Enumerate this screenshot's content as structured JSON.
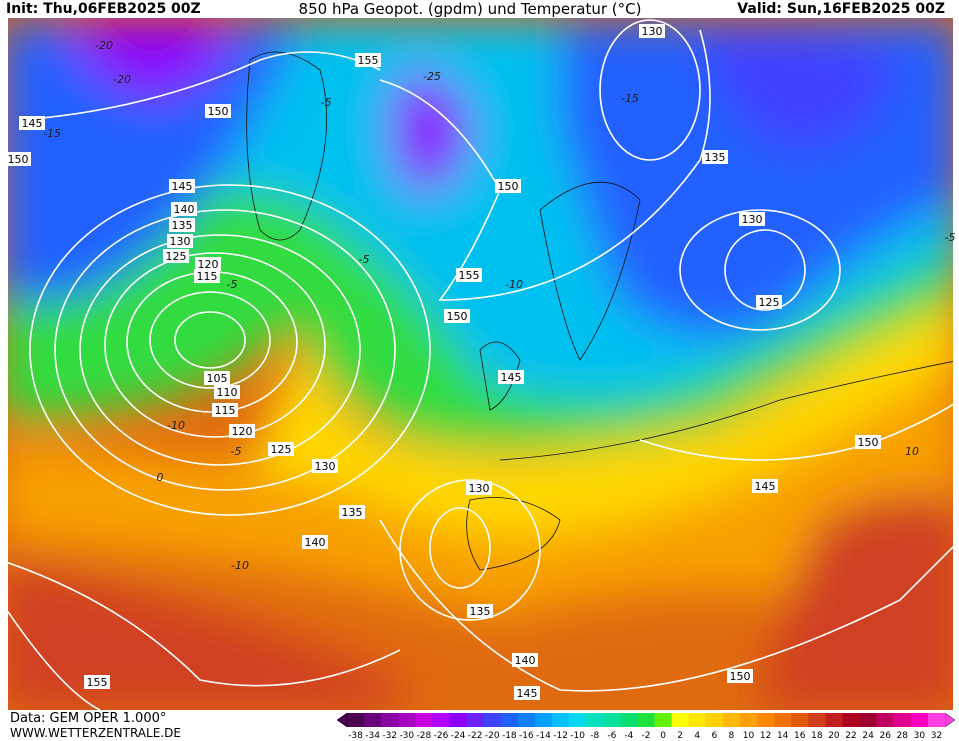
{
  "header": {
    "init": "Init: Thu,06FEB2025 00Z",
    "title": "850 hPa Geopot. (gpdm) und Temperatur (°C)",
    "valid": "Valid: Sun,16FEB2025 00Z"
  },
  "footer": {
    "data": "Data: GEM OPER 1.000°",
    "site": "WWW.WETTERZENTRALE.DE"
  },
  "geopotential_labels": [
    130,
    155,
    150,
    145,
    150,
    145,
    140,
    135,
    130,
    125,
    120,
    115,
    150,
    155,
    150,
    135,
    130,
    125,
    145,
    105,
    110,
    115,
    120,
    125,
    130,
    150,
    145,
    130,
    135,
    140,
    135,
    140,
    145,
    150,
    155
  ],
  "temperature_labels": [
    -20,
    -20,
    -15,
    -5,
    -25,
    -15,
    -5,
    -10,
    -5,
    -10,
    -5,
    0,
    -10,
    10,
    -5
  ],
  "colorbar": {
    "labels": [
      -38,
      -34,
      -32,
      -30,
      -28,
      -26,
      -24,
      -22,
      -20,
      -18,
      -16,
      -14,
      -12,
      -10,
      -8,
      -6,
      -4,
      -2,
      0,
      2,
      4,
      6,
      8,
      10,
      12,
      14,
      16,
      18,
      20,
      22,
      24,
      26,
      28,
      30,
      32
    ],
    "colors": [
      "#4b0050",
      "#6a0080",
      "#8a00a0",
      "#a800c0",
      "#c800e0",
      "#b000ff",
      "#8a00ff",
      "#6a20ff",
      "#4040ff",
      "#2060ff",
      "#1080ff",
      "#00a0ff",
      "#00c0ff",
      "#00d8f0",
      "#00e0c0",
      "#00e0a0",
      "#00e070",
      "#20e040",
      "#60f000",
      "#ffff00",
      "#ffe600",
      "#ffd000",
      "#ffb800",
      "#ffa000",
      "#ff8800",
      "#f07000",
      "#e05800",
      "#d04020",
      "#c02020",
      "#b00020",
      "#a00030",
      "#c00060",
      "#e00090",
      "#ff00c0",
      "#ff40e0"
    ]
  }
}
